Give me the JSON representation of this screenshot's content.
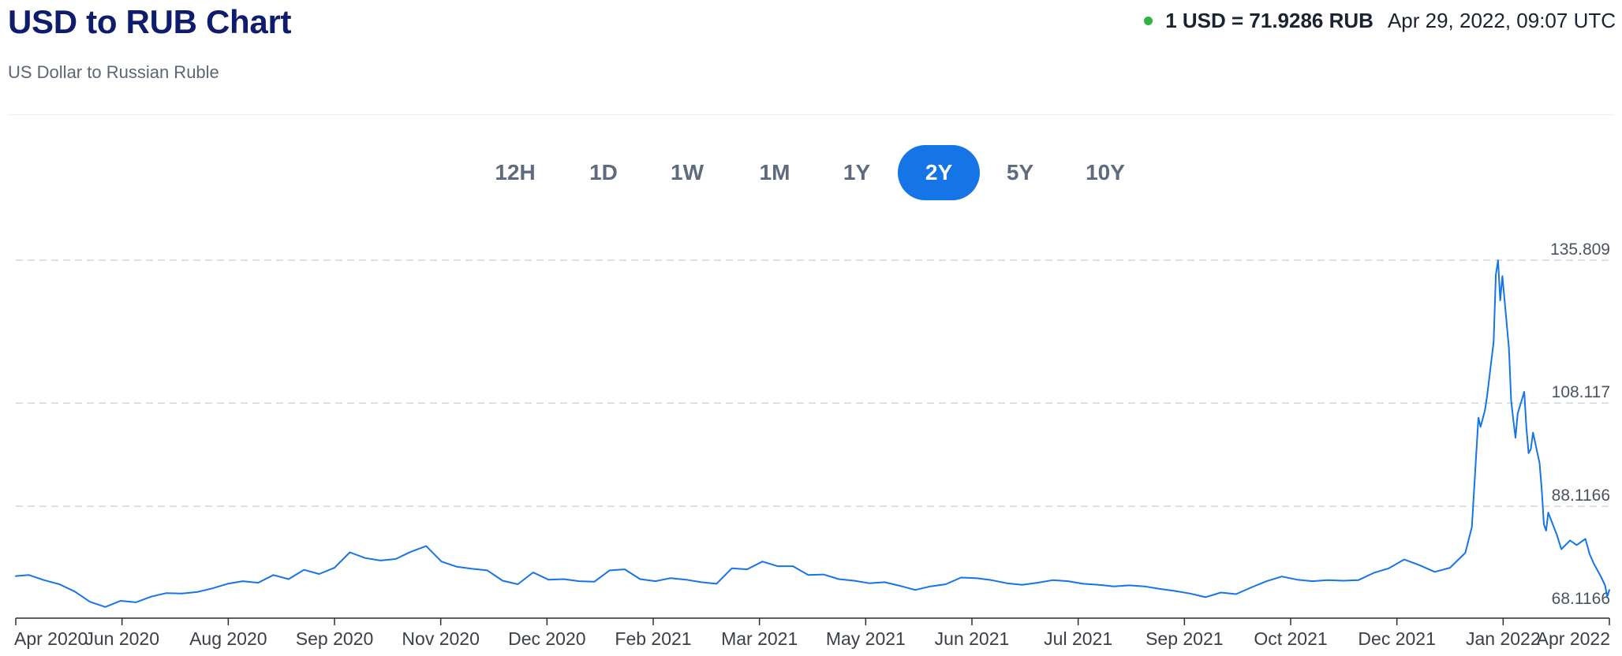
{
  "header": {
    "title": "USD to RUB Chart",
    "subtitle": "US Dollar to Russian Ruble"
  },
  "rate": {
    "text": "1 USD = 71.9286 RUB",
    "timestamp": "Apr 29, 2022, 09:07 UTC",
    "live_color": "#2fb344"
  },
  "ranges": {
    "active": "2Y",
    "items": [
      "12H",
      "1D",
      "1W",
      "1M",
      "1Y",
      "2Y",
      "5Y",
      "10Y"
    ]
  },
  "chart_data": {
    "type": "line",
    "line_color": "#1574e6",
    "grid": "horizontal-dashed",
    "ylim": [
      68.1166,
      135.809
    ],
    "y_ticks": [
      "135.809",
      "108.117",
      "88.1166",
      "68.1166"
    ],
    "x_ticks": [
      "Apr 2020",
      "Jun 2020",
      "Aug 2020",
      "Sep 2020",
      "Nov 2020",
      "Dec 2020",
      "Feb 2021",
      "Mar 2021",
      "May 2021",
      "Jun 2021",
      "Jul 2021",
      "Sep 2021",
      "Oct 2021",
      "Dec 2021",
      "Jan 2022",
      "Apr 2022"
    ],
    "series": [
      {
        "points": [
          [
            "2020-04-29",
            74.6
          ],
          [
            "2020-05-05",
            74.8
          ],
          [
            "2020-05-12",
            73.8
          ],
          [
            "2020-05-19",
            73.0
          ],
          [
            "2020-05-26",
            71.6
          ],
          [
            "2020-06-02",
            69.6
          ],
          [
            "2020-06-09",
            68.6
          ],
          [
            "2020-06-16",
            69.8
          ],
          [
            "2020-06-23",
            69.5
          ],
          [
            "2020-06-30",
            70.6
          ],
          [
            "2020-07-07",
            71.3
          ],
          [
            "2020-07-14",
            71.2
          ],
          [
            "2020-07-21",
            71.5
          ],
          [
            "2020-07-28",
            72.2
          ],
          [
            "2020-08-04",
            73.1
          ],
          [
            "2020-08-11",
            73.6
          ],
          [
            "2020-08-18",
            73.3
          ],
          [
            "2020-08-25",
            74.8
          ],
          [
            "2020-09-01",
            74.0
          ],
          [
            "2020-09-08",
            75.8
          ],
          [
            "2020-09-15",
            75.0
          ],
          [
            "2020-09-22",
            76.2
          ],
          [
            "2020-09-29",
            79.2
          ],
          [
            "2020-10-06",
            78.1
          ],
          [
            "2020-10-13",
            77.6
          ],
          [
            "2020-10-20",
            77.9
          ],
          [
            "2020-10-27",
            79.3
          ],
          [
            "2020-11-03",
            80.4
          ],
          [
            "2020-11-10",
            77.4
          ],
          [
            "2020-11-17",
            76.4
          ],
          [
            "2020-11-24",
            76.0
          ],
          [
            "2020-12-01",
            75.7
          ],
          [
            "2020-12-08",
            73.7
          ],
          [
            "2020-12-15",
            73.0
          ],
          [
            "2020-12-22",
            75.3
          ],
          [
            "2020-12-29",
            73.9
          ],
          [
            "2021-01-05",
            74.0
          ],
          [
            "2021-01-12",
            73.6
          ],
          [
            "2021-01-19",
            73.5
          ],
          [
            "2021-01-26",
            75.7
          ],
          [
            "2021-02-02",
            75.9
          ],
          [
            "2021-02-09",
            74.0
          ],
          [
            "2021-02-16",
            73.6
          ],
          [
            "2021-02-23",
            74.2
          ],
          [
            "2021-03-02",
            73.9
          ],
          [
            "2021-03-09",
            73.4
          ],
          [
            "2021-03-16",
            73.1
          ],
          [
            "2021-03-23",
            76.1
          ],
          [
            "2021-03-30",
            75.9
          ],
          [
            "2021-04-06",
            77.4
          ],
          [
            "2021-04-13",
            76.5
          ],
          [
            "2021-04-20",
            76.5
          ],
          [
            "2021-04-27",
            74.8
          ],
          [
            "2021-05-04",
            74.9
          ],
          [
            "2021-05-11",
            74.0
          ],
          [
            "2021-05-18",
            73.7
          ],
          [
            "2021-05-25",
            73.2
          ],
          [
            "2021-06-01",
            73.4
          ],
          [
            "2021-06-08",
            72.7
          ],
          [
            "2021-06-15",
            71.9
          ],
          [
            "2021-06-22",
            72.6
          ],
          [
            "2021-06-29",
            73.0
          ],
          [
            "2021-07-06",
            74.3
          ],
          [
            "2021-07-13",
            74.2
          ],
          [
            "2021-07-20",
            73.8
          ],
          [
            "2021-07-27",
            73.2
          ],
          [
            "2021-08-03",
            72.9
          ],
          [
            "2021-08-10",
            73.3
          ],
          [
            "2021-08-17",
            73.8
          ],
          [
            "2021-08-24",
            73.6
          ],
          [
            "2021-08-31",
            73.1
          ],
          [
            "2021-09-07",
            72.9
          ],
          [
            "2021-09-14",
            72.6
          ],
          [
            "2021-09-21",
            72.8
          ],
          [
            "2021-09-28",
            72.6
          ],
          [
            "2021-10-05",
            72.1
          ],
          [
            "2021-10-12",
            71.7
          ],
          [
            "2021-10-19",
            71.2
          ],
          [
            "2021-10-26",
            70.5
          ],
          [
            "2021-11-02",
            71.4
          ],
          [
            "2021-11-09",
            71.1
          ],
          [
            "2021-11-16",
            72.4
          ],
          [
            "2021-11-23",
            73.6
          ],
          [
            "2021-11-30",
            74.5
          ],
          [
            "2021-12-07",
            73.9
          ],
          [
            "2021-12-14",
            73.6
          ],
          [
            "2021-12-21",
            73.8
          ],
          [
            "2021-12-28",
            73.7
          ],
          [
            "2022-01-04",
            73.8
          ],
          [
            "2022-01-11",
            75.2
          ],
          [
            "2022-01-18",
            76.1
          ],
          [
            "2022-01-25",
            77.8
          ],
          [
            "2022-02-01",
            76.7
          ],
          [
            "2022-02-08",
            75.4
          ],
          [
            "2022-02-15",
            76.2
          ],
          [
            "2022-02-22",
            79.1
          ],
          [
            "2022-02-25",
            84.1
          ],
          [
            "2022-02-28",
            105.3
          ],
          [
            "2022-03-01",
            103.5
          ],
          [
            "2022-03-03",
            106.7
          ],
          [
            "2022-03-04",
            109.5
          ],
          [
            "2022-03-07",
            120.0
          ],
          [
            "2022-03-08",
            133.0
          ],
          [
            "2022-03-09",
            135.8
          ],
          [
            "2022-03-10",
            128.0
          ],
          [
            "2022-03-11",
            132.7
          ],
          [
            "2022-03-14",
            118.7
          ],
          [
            "2022-03-15",
            108.6
          ],
          [
            "2022-03-16",
            104.9
          ],
          [
            "2022-03-17",
            101.4
          ],
          [
            "2022-03-18",
            106.1
          ],
          [
            "2022-03-21",
            110.3
          ],
          [
            "2022-03-22",
            103.4
          ],
          [
            "2022-03-23",
            98.4
          ],
          [
            "2022-03-24",
            99.2
          ],
          [
            "2022-03-25",
            102.4
          ],
          [
            "2022-03-28",
            96.5
          ],
          [
            "2022-03-29",
            91.5
          ],
          [
            "2022-03-30",
            84.6
          ],
          [
            "2022-03-31",
            83.4
          ],
          [
            "2022-04-01",
            86.9
          ],
          [
            "2022-04-05",
            82.5
          ],
          [
            "2022-04-07",
            79.8
          ],
          [
            "2022-04-11",
            81.5
          ],
          [
            "2022-04-14",
            80.6
          ],
          [
            "2022-04-18",
            81.8
          ],
          [
            "2022-04-20",
            78.8
          ],
          [
            "2022-04-22",
            76.9
          ],
          [
            "2022-04-25",
            74.6
          ],
          [
            "2022-04-27",
            72.8
          ],
          [
            "2022-04-28",
            70.6
          ],
          [
            "2022-04-29",
            71.9
          ]
        ]
      }
    ]
  }
}
